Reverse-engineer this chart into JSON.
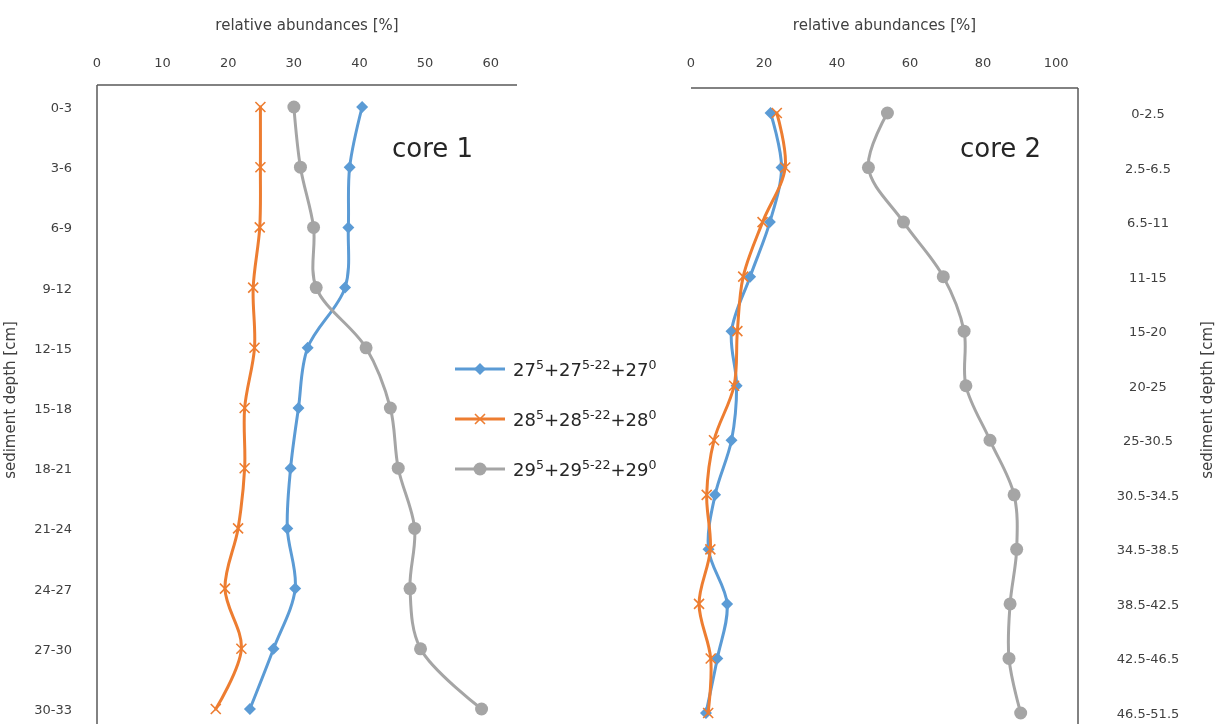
{
  "chart_data": [
    {
      "type": "line",
      "orientation": "horizontal",
      "xlabel": "relative abundances [%]",
      "ylabel": "sediment depth [cm]",
      "categories": [
        "0-3",
        "3-6",
        "6-9",
        "9-12",
        "12-15",
        "15-18",
        "18-21",
        "21-24",
        "24-27",
        "27-30",
        "30-33"
      ],
      "xlim": [
        0,
        64
      ],
      "xticks": [
        0,
        10,
        20,
        30,
        40,
        50,
        60
      ],
      "grid": false,
      "legend": "right",
      "annotations": [
        "core 1"
      ],
      "series": [
        {
          "name": "27$^{5}$+27$^{5-22}$+27$^{0}$",
          "color": "#5b9bd5",
          "marker": "diamond",
          "values": [
            40.4,
            38.5,
            38.3,
            37.8,
            32.1,
            30.7,
            29.5,
            29.0,
            30.2,
            26.9,
            23.3
          ]
        },
        {
          "name": "28$^{5}$+28$^{5-22}$+28$^{0}$",
          "color": "#ed7d31",
          "marker": "cross",
          "values": [
            24.9,
            24.9,
            24.8,
            23.8,
            24.0,
            22.5,
            22.5,
            21.5,
            19.5,
            22.0,
            18.1
          ]
        },
        {
          "name": "29$^{5}$+29$^{5-22}$+29$^{0}$",
          "color": "#a5a5a5",
          "marker": "circle",
          "values": [
            30.0,
            31.0,
            33.0,
            33.4,
            41.0,
            44.7,
            45.9,
            48.4,
            47.7,
            49.3,
            58.6
          ]
        }
      ]
    },
    {
      "type": "line",
      "orientation": "horizontal",
      "xlabel": "relative abundances [%]",
      "ylabel": "sediment depth [cm]",
      "categories": [
        "0-2.5",
        "2.5-6.5",
        "6.5-11",
        "11-15",
        "15-20",
        "20-25",
        "25-30.5",
        "30.5-34.5",
        "34.5-38.5",
        "38.5-42.5",
        "42.5-46.5",
        "46.5-51.5"
      ],
      "xlim": [
        0,
        106
      ],
      "xticks": [
        0,
        20,
        40,
        60,
        80,
        100
      ],
      "grid": false,
      "annotations": [
        "core 2"
      ],
      "series": [
        {
          "color": "#5b9bd5",
          "marker": "diamond",
          "values": [
            21.8,
            24.8,
            21.6,
            16.2,
            11.1,
            12.5,
            11.1,
            6.6,
            4.8,
            9.9,
            7.2,
            4.1
          ]
        },
        {
          "color": "#ed7d31",
          "marker": "cross",
          "values": [
            23.5,
            25.8,
            19.6,
            14.3,
            12.7,
            11.8,
            6.3,
            4.3,
            5.3,
            2.2,
            5.4,
            4.7
          ]
        },
        {
          "color": "#a5a5a5",
          "marker": "circle",
          "values": [
            53.8,
            48.6,
            58.2,
            69.1,
            74.8,
            75.3,
            81.9,
            88.5,
            89.2,
            87.4,
            87.1,
            90.3
          ]
        }
      ]
    }
  ]
}
